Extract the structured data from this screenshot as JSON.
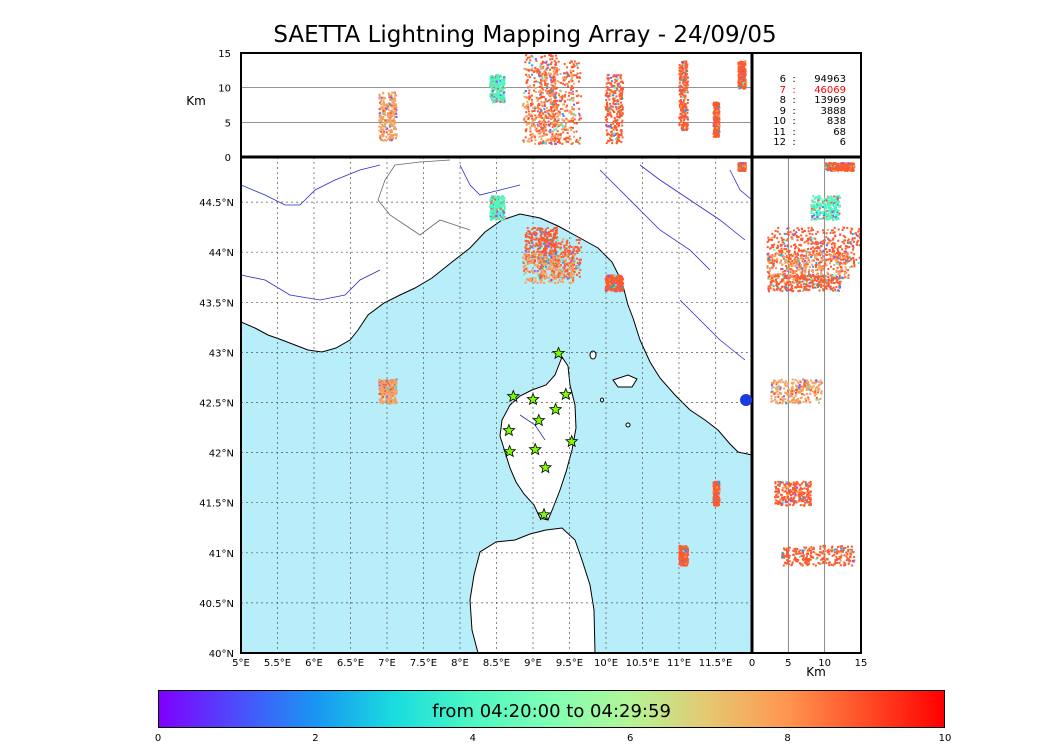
{
  "title": "SAETTA Lightning Mapping Array - 24/09/05",
  "map": {
    "lon_ticks": [
      "5°E",
      "5.5°E",
      "6°E",
      "6.5°E",
      "7°E",
      "7.5°E",
      "8°E",
      "8.5°E",
      "9°E",
      "9.5°E",
      "10°E",
      "10.5°E",
      "11°E",
      "11.5°E"
    ],
    "lat_ticks": [
      "40°N",
      "40.5°N",
      "41°N",
      "41.5°N",
      "42°N",
      "42.5°N",
      "43°N",
      "43.5°N",
      "44°N",
      "44.5°N"
    ],
    "lon_range": [
      5,
      12
    ],
    "lat_range": [
      40,
      44.95
    ],
    "colors": {
      "sea": "#b8eefa",
      "land": "#ffffff",
      "rivers": "#2a2ad0",
      "borders": "#666666",
      "coast": "#000000",
      "grid": "#555555"
    },
    "stations": [
      {
        "lon": 9.35,
        "lat": 42.99
      },
      {
        "lon": 8.73,
        "lat": 42.56
      },
      {
        "lon": 9.0,
        "lat": 42.53
      },
      {
        "lon": 9.45,
        "lat": 42.58
      },
      {
        "lon": 9.31,
        "lat": 42.43
      },
      {
        "lon": 9.08,
        "lat": 42.32
      },
      {
        "lon": 8.67,
        "lat": 42.22
      },
      {
        "lon": 9.53,
        "lat": 42.11
      },
      {
        "lon": 8.68,
        "lat": 42.01
      },
      {
        "lon": 9.03,
        "lat": 42.03
      },
      {
        "lon": 9.17,
        "lat": 41.85
      },
      {
        "lon": 9.15,
        "lat": 41.38
      }
    ],
    "station_color": "#7cfc00"
  },
  "altitude_panel": {
    "axis_label": "Km",
    "y_ticks": [
      "0",
      "5",
      "10",
      "15"
    ]
  },
  "lat_alt_panel": {
    "axis_label": "Km",
    "x_ticks": [
      "0",
      "5",
      "10",
      "15"
    ]
  },
  "station_counts": [
    {
      "k": "6",
      "v": "94963",
      "color": "#000000"
    },
    {
      "k": "7",
      "v": "46069",
      "color": "#ff0000"
    },
    {
      "k": "8",
      "v": "13969",
      "color": "#000000"
    },
    {
      "k": "9",
      "v": "3888",
      "color": "#000000"
    },
    {
      "k": "10",
      "v": "838",
      "color": "#000000"
    },
    {
      "k": "11",
      "v": "68",
      "color": "#000000"
    },
    {
      "k": "12",
      "v": "6",
      "color": "#000000"
    }
  ],
  "colorbar": {
    "label": "from 04:20:00 to 04:29:59",
    "ticks": [
      "0",
      "2",
      "4",
      "6",
      "8",
      "10"
    ],
    "range": [
      0,
      10
    ]
  },
  "clusters": [
    {
      "lon": 7.0,
      "lat": 42.62,
      "rlon": 0.12,
      "rlat": 0.12,
      "zmin": 2.5,
      "zmax": 9.5,
      "color": "#f4a261"
    },
    {
      "lon": 9.1,
      "lat": 44.08,
      "rlon": 0.22,
      "rlat": 0.18,
      "zmin": 2,
      "zmax": 15,
      "color": "#ff5a2e"
    },
    {
      "lon": 9.35,
      "lat": 43.95,
      "rlon": 0.3,
      "rlat": 0.2,
      "zmin": 2,
      "zmax": 14,
      "color": "#ff5a2e"
    },
    {
      "lon": 9.2,
      "lat": 43.85,
      "rlon": 0.35,
      "rlat": 0.15,
      "zmin": 2,
      "zmax": 13,
      "color": "#f4a261"
    },
    {
      "lon": 10.1,
      "lat": 43.7,
      "rlon": 0.12,
      "rlat": 0.08,
      "zmin": 2,
      "zmax": 12,
      "color": "#ff5a2e"
    },
    {
      "lon": 11.05,
      "lat": 40.98,
      "rlon": 0.06,
      "rlat": 0.1,
      "zmin": 4,
      "zmax": 14,
      "color": "#ff5a2e"
    },
    {
      "lon": 11.5,
      "lat": 41.6,
      "rlon": 0.04,
      "rlat": 0.12,
      "zmin": 3,
      "zmax": 8,
      "color": "#ff5a2e"
    },
    {
      "lon": 11.85,
      "lat": 44.86,
      "rlon": 0.05,
      "rlat": 0.04,
      "zmin": 10,
      "zmax": 14,
      "color": "#ff5a2e"
    },
    {
      "lon": 8.5,
      "lat": 44.45,
      "rlon": 0.1,
      "rlat": 0.12,
      "zmin": 8,
      "zmax": 12,
      "color": "#4df7c4"
    }
  ]
}
